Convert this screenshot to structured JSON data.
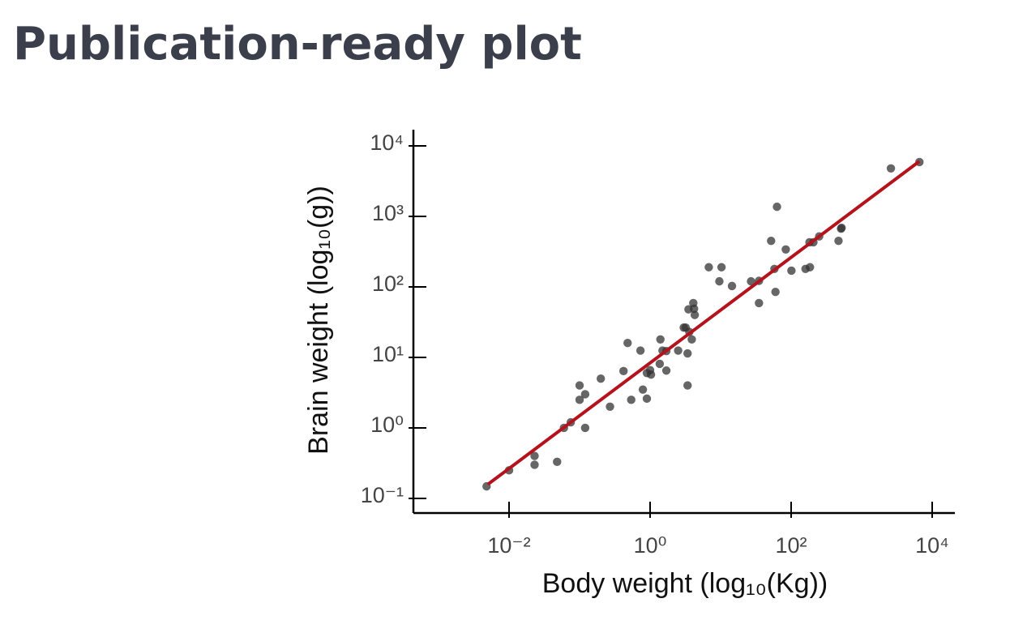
{
  "chart_data": {
    "type": "scatter",
    "title": "Publication-ready plot",
    "xlabel": "Body weight (log₁₀(Kg))",
    "ylabel": "Brain weight (log₁₀(g))",
    "xscale": "log",
    "yscale": "log",
    "grid": false,
    "xlim": [
      0.00044,
      21000
    ],
    "ylim": [
      0.062,
      17000
    ],
    "xticks": [
      {
        "value": 0.01,
        "label": "10⁻²"
      },
      {
        "value": 1,
        "label": "10⁰"
      },
      {
        "value": 100,
        "label": "10²"
      },
      {
        "value": 10000,
        "label": "10⁴"
      }
    ],
    "yticks": [
      {
        "value": 0.1,
        "label": "10⁻¹"
      },
      {
        "value": 1,
        "label": "10⁰"
      },
      {
        "value": 10,
        "label": "10¹"
      },
      {
        "value": 100,
        "label": "10²"
      },
      {
        "value": 1000,
        "label": "10³"
      },
      {
        "value": 10000,
        "label": "10⁴"
      }
    ],
    "color": "#333333",
    "x": [
      0.0048,
      0.01,
      0.023,
      0.023,
      0.048,
      0.06,
      0.075,
      0.1,
      0.1,
      0.12,
      0.12,
      0.2,
      0.27,
      0.42,
      0.48,
      0.54,
      0.73,
      0.79,
      0.9,
      0.9,
      1.03,
      1.0,
      1.37,
      1.4,
      1.5,
      1.7,
      1.7,
      2.5,
      3.0,
      3.2,
      3.4,
      3.4,
      3.5,
      3.9,
      4.1,
      4.2,
      4.3,
      3.6,
      6.8,
      9.6,
      10.3,
      14.5,
      27,
      35,
      35,
      52,
      58,
      60,
      63,
      84,
      101,
      160,
      185,
      182,
      207,
      250,
      470,
      510,
      520,
      2600,
      6600
    ],
    "values": [
      0.148,
      0.25,
      0.4,
      0.3,
      0.33,
      1.0,
      1.2,
      4.0,
      2.5,
      3.0,
      1.0,
      5.0,
      2.0,
      6.4,
      16,
      2.5,
      12.5,
      3.5,
      2.6,
      6.0,
      5.7,
      6.6,
      8.1,
      18,
      12.5,
      6.5,
      12.3,
      12.5,
      26.5,
      26.5,
      11.4,
      4.0,
      48,
      18,
      59,
      49,
      40,
      23,
      190,
      120,
      190,
      103,
      120,
      122,
      59,
      450,
      180,
      85,
      1370,
      340,
      170,
      180,
      190,
      430,
      430,
      520,
      450,
      670,
      690,
      4800,
      5900
    ],
    "fit": {
      "color": "#b5121b",
      "x": [
        0.005,
        6600
      ],
      "y": [
        0.158,
        6050
      ]
    }
  }
}
